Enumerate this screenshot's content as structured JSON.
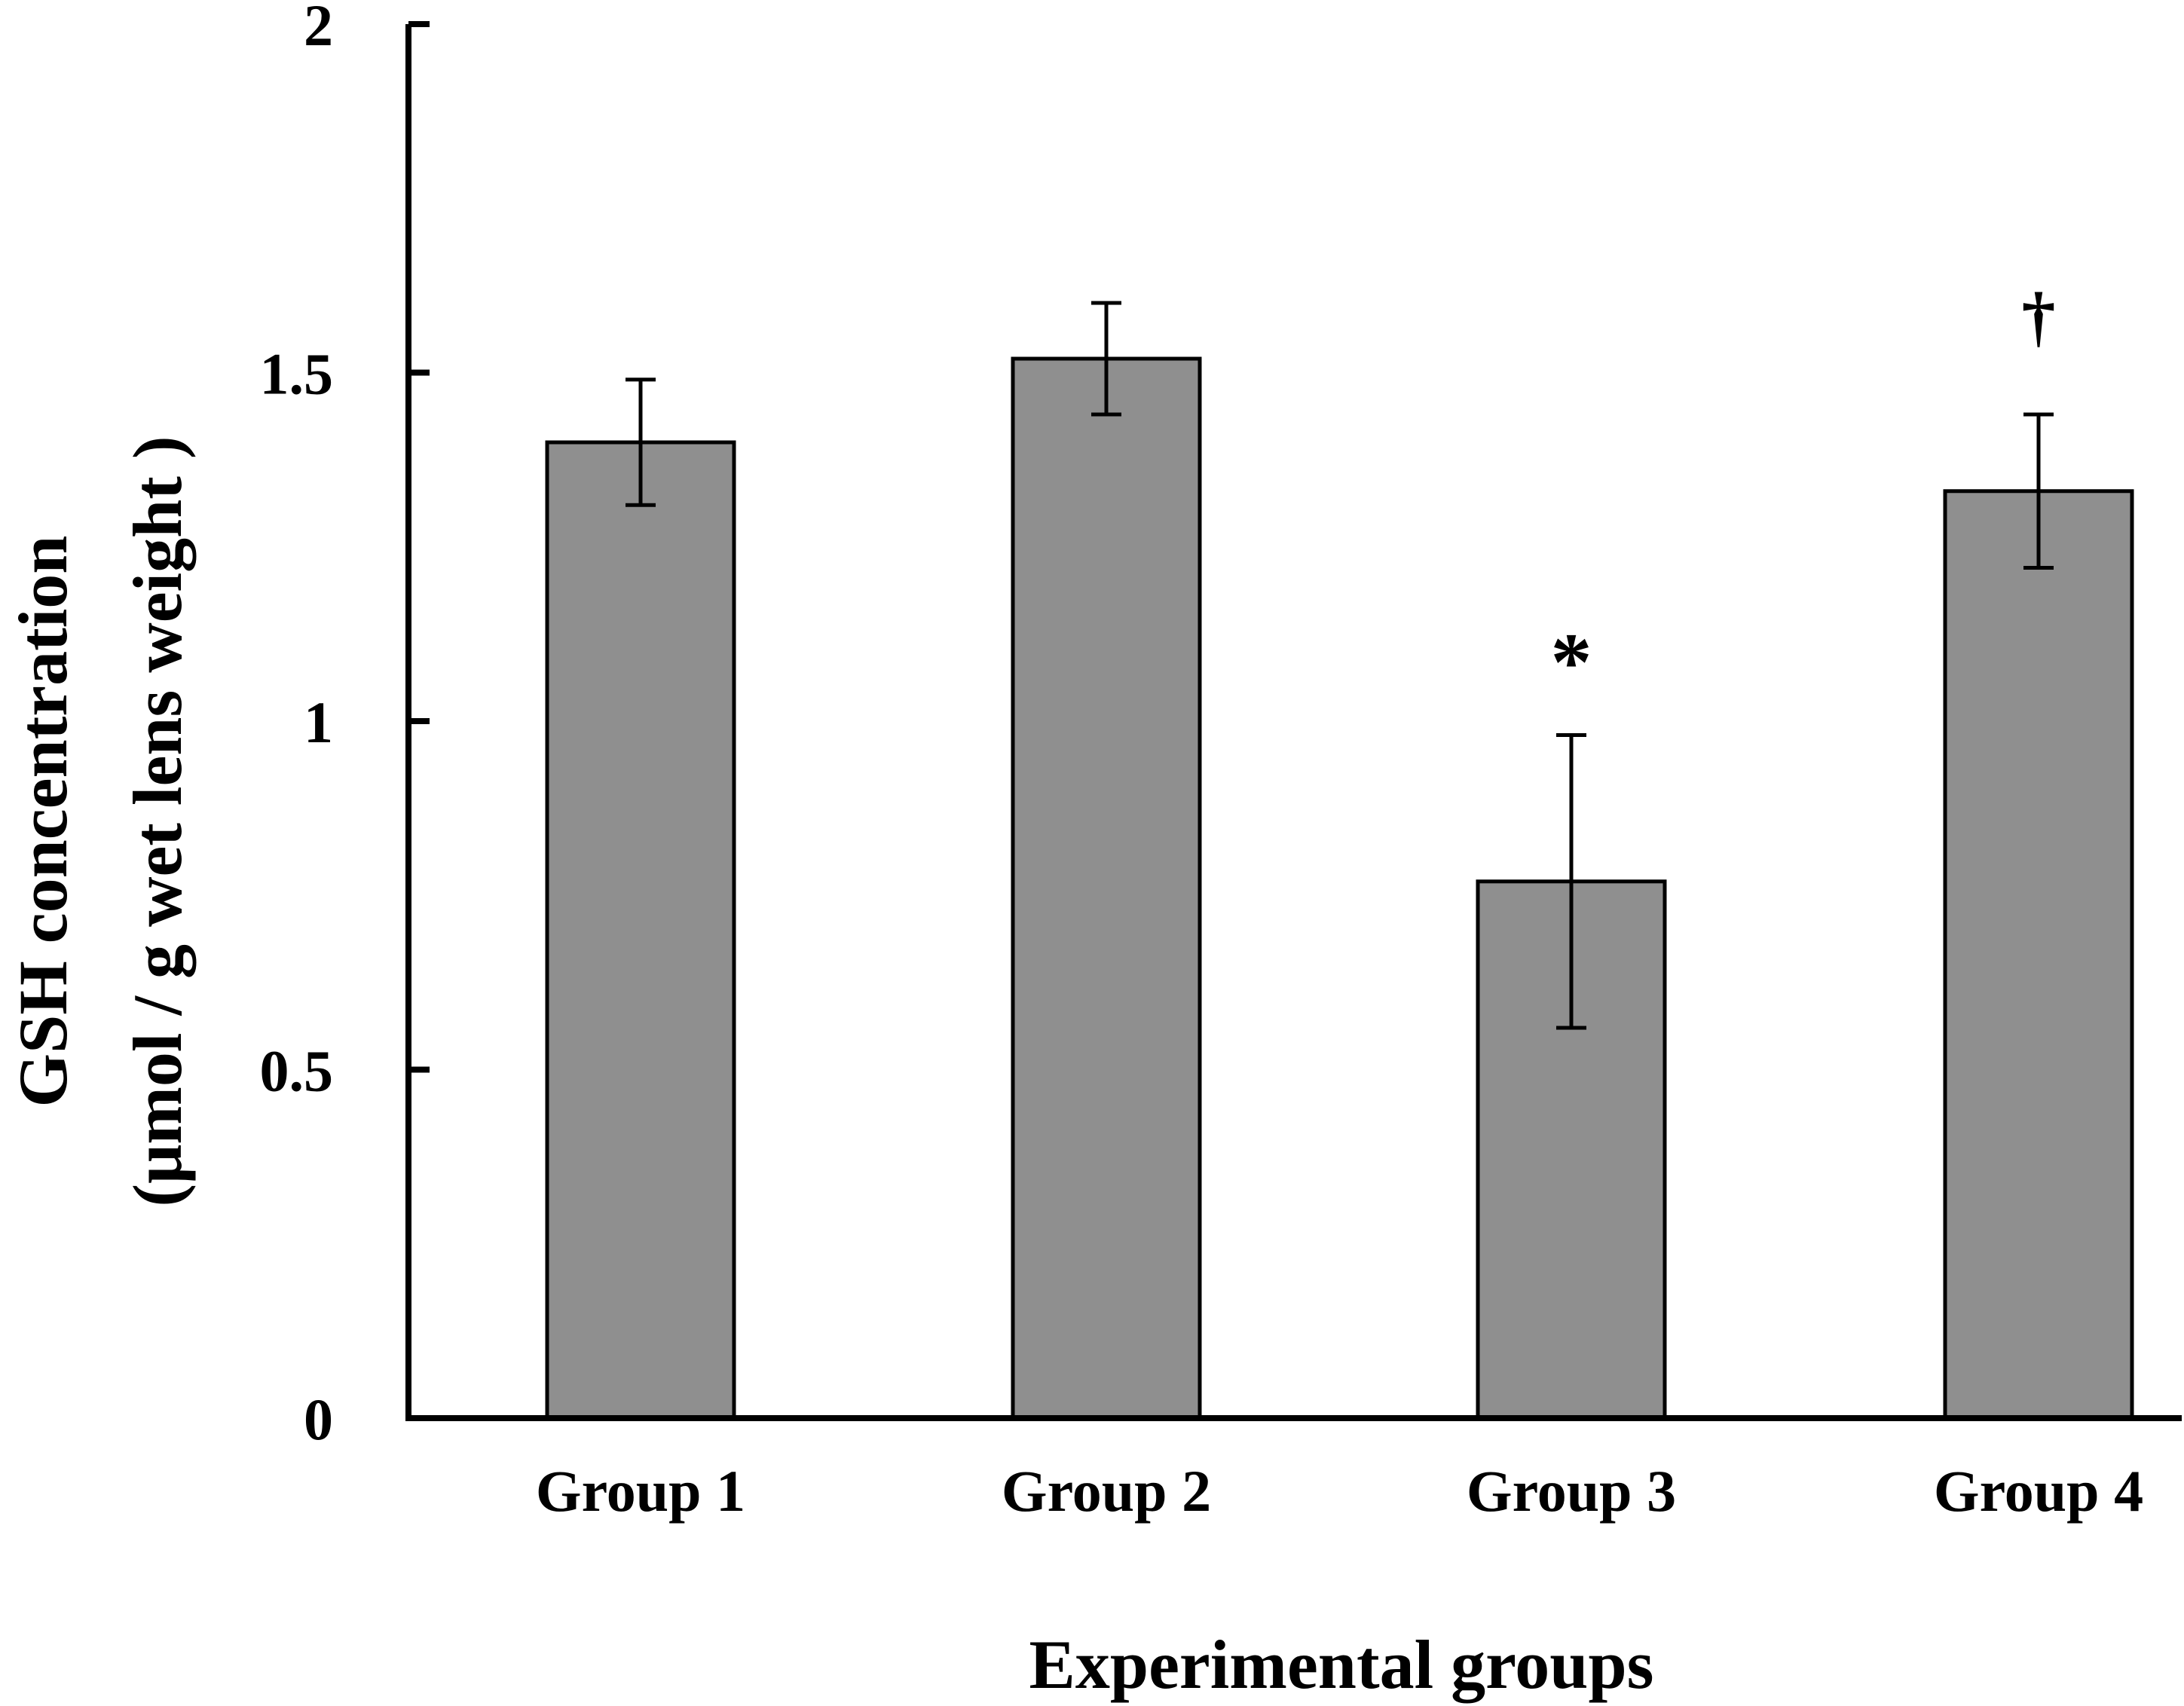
{
  "chart_data": {
    "type": "bar",
    "categories": [
      "Group 1",
      "Group 2",
      "Group 3",
      "Group 4"
    ],
    "values": [
      1.4,
      1.52,
      0.77,
      1.33
    ],
    "errors": [
      0.09,
      0.08,
      0.21,
      0.11
    ],
    "annotations": [
      "",
      "",
      "*",
      "†"
    ],
    "xlabel": "Experimental groups",
    "ylabel_line1": "GSH concentration",
    "ylabel_line2": "(μmol / g wet lens weight )",
    "ylim": [
      0,
      2
    ],
    "yticks": [
      0,
      0.5,
      1,
      1.5,
      2
    ],
    "ytick_labels": [
      "0",
      "0.5",
      "1",
      "1.5",
      "2"
    ],
    "grid": false,
    "colors": {
      "bar": "#8f8f8f",
      "bar_edge": "#000000",
      "axis": "#000000"
    }
  }
}
